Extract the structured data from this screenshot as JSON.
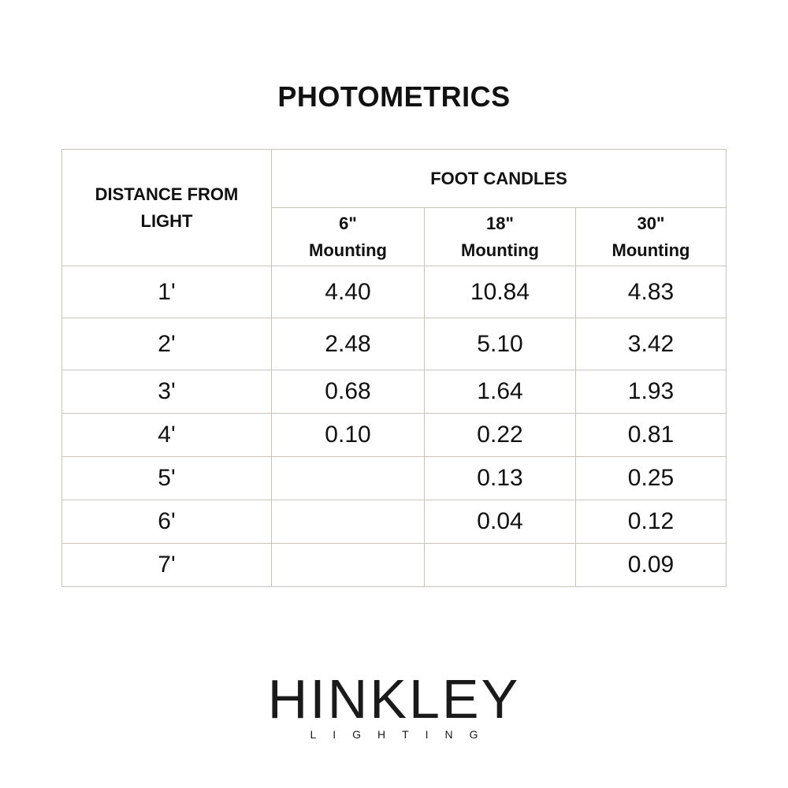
{
  "title": "PHOTOMETRICS",
  "table": {
    "row_header": "DISTANCE FROM LIGHT",
    "group_header": "FOOT CANDLES",
    "columns": [
      {
        "size": "6\"",
        "label": "Mounting"
      },
      {
        "size": "18\"",
        "label": "Mounting"
      },
      {
        "size": "30\"",
        "label": "Mounting"
      }
    ],
    "rows": [
      {
        "distance": "1'",
        "values": [
          "4.40",
          "10.84",
          "4.83"
        ]
      },
      {
        "distance": "2'",
        "values": [
          "2.48",
          "5.10",
          "3.42"
        ]
      },
      {
        "distance": "3'",
        "values": [
          "0.68",
          "1.64",
          "1.93"
        ]
      },
      {
        "distance": "4'",
        "values": [
          "0.10",
          "0.22",
          "0.81"
        ]
      },
      {
        "distance": "5'",
        "values": [
          "",
          "0.13",
          "0.25"
        ]
      },
      {
        "distance": "6'",
        "values": [
          "",
          "0.04",
          "0.12"
        ]
      },
      {
        "distance": "7'",
        "values": [
          "",
          "",
          "0.09"
        ]
      }
    ]
  },
  "logo": {
    "brand": "HINKLEY",
    "tagline": "LIGHTING"
  },
  "colors": {
    "border": "#c9c3b9",
    "text": "#111111"
  }
}
